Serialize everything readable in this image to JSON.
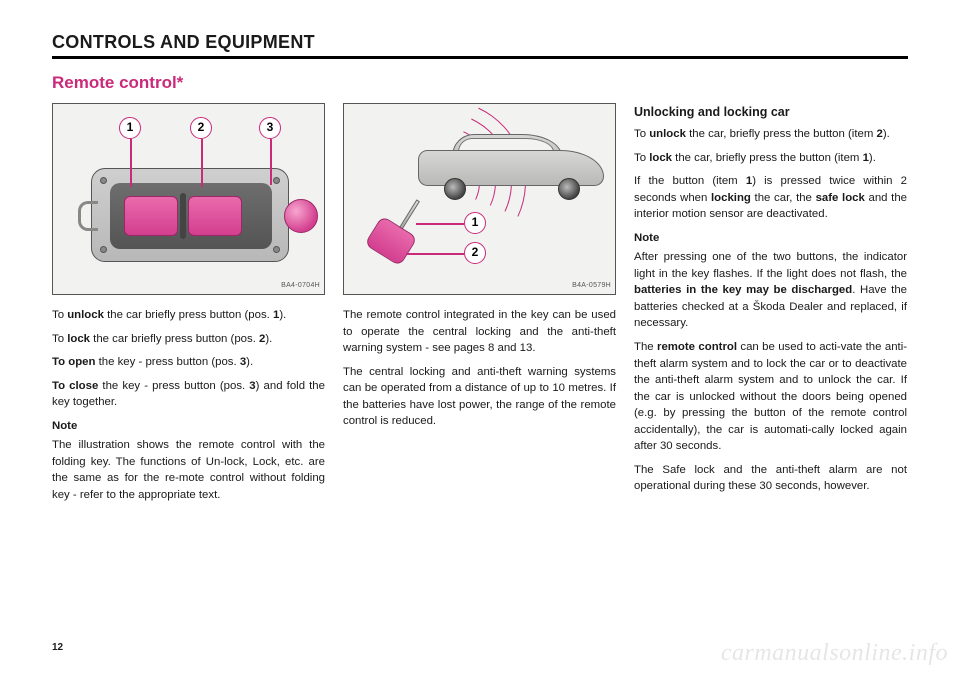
{
  "header": "CONTROLS AND EQUIPMENT",
  "title": "Remote control*",
  "page_number": "12",
  "watermark": "carmanualsonline.info",
  "figure1": {
    "code": "BA4-0704H",
    "callouts": [
      "1",
      "2",
      "3"
    ]
  },
  "figure2": {
    "code": "B4A-0579H",
    "callouts": [
      "1",
      "2"
    ]
  },
  "col1": {
    "p1a": "To ",
    "p1b": "unlock",
    "p1c": " the car briefly press button (pos. ",
    "p1d": "1",
    "p1e": ").",
    "p2a": "To ",
    "p2b": "lock",
    "p2c": " the car briefly press button (pos. ",
    "p2d": "2",
    "p2e": ").",
    "p3a": "To open",
    "p3b": " the key - press button (pos. ",
    "p3c": "3",
    "p3d": ").",
    "p4a": "To close",
    "p4b": " the key - press button (pos. ",
    "p4c": "3",
    "p4d": ") and fold the key together.",
    "note": "Note",
    "p5": "The illustration shows the remote control with the folding key. The functions of Un-lock, Lock, etc. are the same as for the re-mote control without folding key - refer to the appropriate text."
  },
  "col2": {
    "p1": "The remote control integrated in the key can be used to operate the central locking and the anti-theft warning system - see pages 8 and 13.",
    "p2": "The central locking and anti-theft warning systems can be operated from a distance of up to 10 metres. If the batteries have lost power, the range of the remote control is reduced."
  },
  "col3": {
    "heading": "Unlocking and locking car",
    "p1a": "To ",
    "p1b": "unlock",
    "p1c": " the car, briefly press the button (item ",
    "p1d": "2",
    "p1e": ").",
    "p2a": "To ",
    "p2b": "lock",
    "p2c": " the car, briefly press the button (item ",
    "p2d": "1",
    "p2e": ").",
    "p3a": "If the button (item ",
    "p3b": "1",
    "p3c": ") is pressed twice within 2 seconds when ",
    "p3d": "locking",
    "p3e": " the car, the ",
    "p3f": "safe lock",
    "p3g": " and the interior motion sensor are deactivated.",
    "note": "Note",
    "p4a": "After pressing one of the two buttons, the indicator light in the key flashes. If the light does not flash, the ",
    "p4b": "batteries in the key may be discharged",
    "p4c": ". Have the batteries checked at a Škoda Dealer and replaced, if necessary.",
    "p5a": "The ",
    "p5b": "remote control",
    "p5c": " can be used to acti-vate the anti-theft alarm system and to lock the car or to deactivate the anti-theft alarm system and to unlock the car. If the car is unlocked without the doors being opened (e.g. by pressing the button of the remote control accidentally), the car is automati-cally locked again after 30 seconds.",
    "p6": "The Safe lock and the anti-theft alarm are not operational during these 30 seconds, however."
  }
}
